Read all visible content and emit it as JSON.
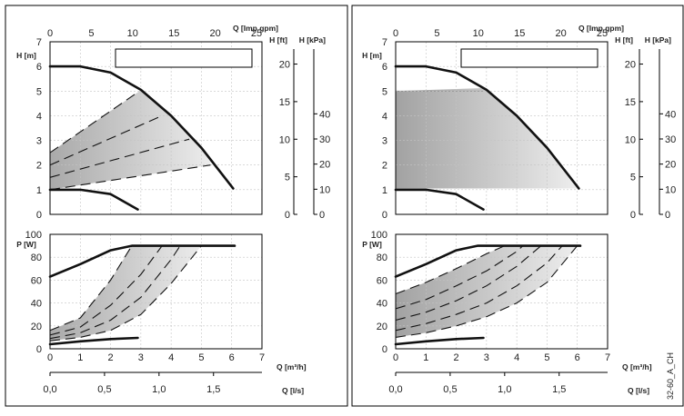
{
  "figure_code": "32-60_A_CH",
  "axis_labels": {
    "q_imp": "Q [Imp gpm]",
    "h_ft": "H [ft]",
    "h_kpa": "H [kPa]",
    "h_m": "H [m]",
    "p_w": "P [W]",
    "q_m3h": "Q [m³/h]",
    "q_ls": "Q [l/s]"
  },
  "ticks": {
    "h_m": [
      "0",
      "1",
      "2",
      "3",
      "4",
      "5",
      "6",
      "7"
    ],
    "q_imp": [
      "0",
      "5",
      "10",
      "15",
      "20",
      "25"
    ],
    "h_ft": [
      "0",
      "5",
      "10",
      "15",
      "20"
    ],
    "h_kpa": [
      "0",
      "10",
      "20",
      "30",
      "40"
    ],
    "p_w": [
      "0",
      "20",
      "40",
      "60",
      "80",
      "100"
    ],
    "q_m3h": [
      "0",
      "1",
      "2",
      "3",
      "4",
      "5",
      "6",
      "7"
    ],
    "q_ls": [
      "0,0",
      "0,5",
      "1,0",
      "1,5"
    ]
  },
  "chart_data": [
    {
      "type": "line",
      "panel": "left-head",
      "xlabel": "Q [m³/h]",
      "ylabel": "H [m]",
      "xlim": [
        0,
        7
      ],
      "ylim": [
        0,
        7
      ],
      "grid": true,
      "shaded_region": "proportional-pressure",
      "series": [
        {
          "style": "solid-thick",
          "x": [
            0,
            1,
            2,
            3,
            4,
            5,
            6.05
          ],
          "y": [
            6.0,
            6.0,
            5.75,
            5.05,
            4.0,
            2.7,
            1.05
          ]
        },
        {
          "style": "solid-thick",
          "x": [
            0,
            1,
            2,
            2.9
          ],
          "y": [
            1.0,
            1.0,
            0.82,
            0.2
          ]
        },
        {
          "style": "dashed",
          "x": [
            0,
            2.9
          ],
          "y": [
            2.5,
            4.95
          ]
        },
        {
          "style": "dashed",
          "x": [
            0,
            3.7
          ],
          "y": [
            2.0,
            4.0
          ]
        },
        {
          "style": "dashed",
          "x": [
            0,
            4.6
          ],
          "y": [
            1.5,
            3.05
          ]
        },
        {
          "style": "dashed",
          "x": [
            0,
            5.3
          ],
          "y": [
            1.0,
            2.0
          ]
        }
      ]
    },
    {
      "type": "line",
      "panel": "left-power",
      "xlabel": "Q [m³/h]",
      "ylabel": "P [W]",
      "xlim": [
        0,
        7
      ],
      "ylim": [
        0,
        100
      ],
      "grid": true,
      "shaded_region": "proportional-pressure",
      "series": [
        {
          "style": "solid-thick",
          "x": [
            0,
            1,
            2,
            2.7,
            3,
            4,
            5,
            6.1
          ],
          "y": [
            63,
            74,
            86,
            90,
            90,
            90,
            90,
            90
          ]
        },
        {
          "style": "solid-thick",
          "x": [
            0,
            1,
            2,
            2.9
          ],
          "y": [
            4,
            6.5,
            8.5,
            9.5
          ]
        },
        {
          "style": "dashed",
          "x": [
            0,
            1,
            2,
            2.7
          ],
          "y": [
            16,
            27,
            60,
            90
          ]
        },
        {
          "style": "dashed",
          "x": [
            0,
            1,
            2,
            3,
            3.7
          ],
          "y": [
            12,
            19,
            38,
            65,
            90
          ]
        },
        {
          "style": "dashed",
          "x": [
            0,
            1,
            2,
            3,
            4,
            4.3
          ],
          "y": [
            9,
            14,
            25,
            45,
            78,
            90
          ]
        },
        {
          "style": "dashed",
          "x": [
            0,
            1,
            2,
            3,
            4,
            5
          ],
          "y": [
            7,
            10,
            16,
            30,
            57,
            90
          ]
        }
      ]
    },
    {
      "type": "line",
      "panel": "right-head",
      "xlabel": "Q [m³/h]",
      "ylabel": "H [m]",
      "xlim": [
        0,
        7
      ],
      "ylim": [
        0,
        7
      ],
      "grid": true,
      "shaded_region": "constant-pressure",
      "series": [
        {
          "style": "solid-thick",
          "x": [
            0,
            1,
            2,
            3,
            4,
            5,
            6.05
          ],
          "y": [
            6.0,
            6.0,
            5.75,
            5.05,
            4.0,
            2.7,
            1.05
          ]
        },
        {
          "style": "solid-thick",
          "x": [
            0,
            1,
            2,
            2.9
          ],
          "y": [
            1.0,
            1.0,
            0.82,
            0.2
          ]
        }
      ]
    },
    {
      "type": "line",
      "panel": "right-power",
      "xlabel": "Q [m³/h]",
      "ylabel": "P [W]",
      "xlim": [
        0,
        7
      ],
      "ylim": [
        0,
        100
      ],
      "grid": true,
      "shaded_region": "constant-pressure",
      "series": [
        {
          "style": "solid-thick",
          "x": [
            0,
            1,
            2,
            2.7,
            3,
            4,
            5,
            6.1
          ],
          "y": [
            63,
            74,
            86,
            90,
            90,
            90,
            90,
            90
          ]
        },
        {
          "style": "solid-thick",
          "x": [
            0,
            1,
            2,
            2.9
          ],
          "y": [
            4,
            6.5,
            8.5,
            9.5
          ]
        },
        {
          "style": "dashed",
          "x": [
            0,
            1,
            2,
            3,
            3.6
          ],
          "y": [
            48,
            58,
            70,
            83,
            90
          ]
        },
        {
          "style": "dashed",
          "x": [
            0,
            1,
            2,
            3,
            4,
            4.2
          ],
          "y": [
            35,
            43,
            55,
            68,
            85,
            90
          ]
        },
        {
          "style": "dashed",
          "x": [
            0,
            1,
            2,
            3,
            4,
            4.8
          ],
          "y": [
            25,
            32,
            42,
            55,
            72,
            90
          ]
        },
        {
          "style": "dashed",
          "x": [
            0,
            1,
            2,
            3,
            4,
            5,
            5.5
          ],
          "y": [
            16,
            22,
            30,
            40,
            55,
            75,
            90
          ]
        },
        {
          "style": "dashed",
          "x": [
            0,
            1,
            2,
            3,
            4,
            5,
            6.0
          ],
          "y": [
            10,
            14,
            20,
            28,
            40,
            58,
            90
          ]
        }
      ]
    }
  ]
}
